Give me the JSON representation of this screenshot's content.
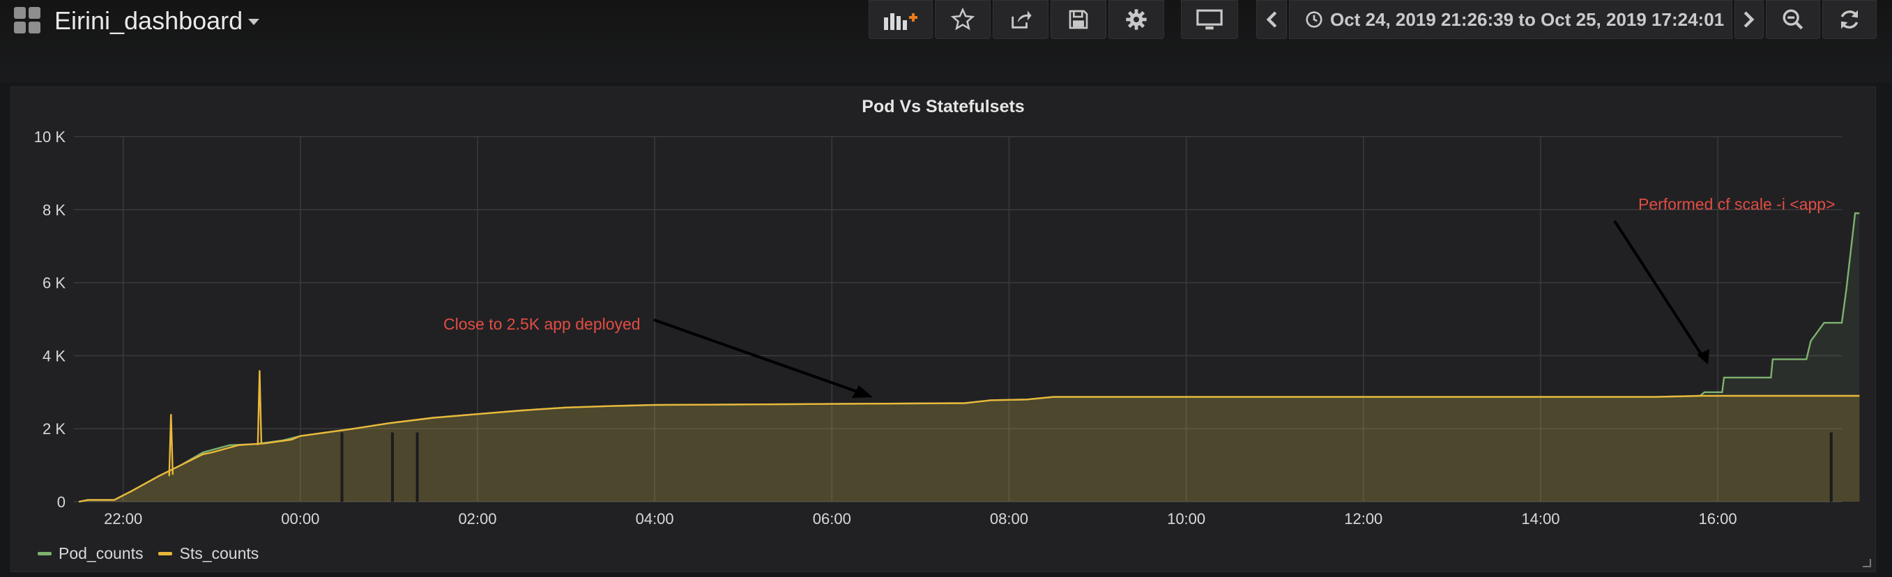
{
  "header": {
    "title": "Eirini_dashboard",
    "time_range": "Oct 24, 2019 21:26:39 to Oct 25, 2019 17:24:01"
  },
  "toolbar": {
    "icons": [
      "add-panel-icon",
      "star-icon",
      "share-icon",
      "save-icon",
      "gear-icon",
      "tv-mode-icon",
      "chevron-left-icon",
      "clock-icon",
      "chevron-right-icon",
      "zoom-out-icon",
      "refresh-icon"
    ]
  },
  "panel": {
    "title": "Pod Vs Statefulsets"
  },
  "chart_data": {
    "type": "line",
    "title": "Pod Vs Statefulsets",
    "x_axis": {
      "ticks": [
        "22:00",
        "00:00",
        "02:00",
        "04:00",
        "06:00",
        "08:00",
        "10:00",
        "12:00",
        "14:00",
        "16:00"
      ],
      "tick_hours": [
        22,
        24,
        26,
        28,
        30,
        32,
        34,
        36,
        38,
        40
      ],
      "range_hours": [
        21.444,
        41.4
      ]
    },
    "y_axis": {
      "ticks": [
        "0",
        "2 K",
        "4 K",
        "6 K",
        "8 K",
        "10 K"
      ],
      "tick_values": [
        0,
        2000,
        4000,
        6000,
        8000,
        10000
      ],
      "ylim": [
        0,
        10000
      ]
    },
    "grid": true,
    "legend": "bottom-left",
    "series": [
      {
        "name": "Pod_counts",
        "color": "#7eb26d",
        "points": [
          [
            21.5,
            0
          ],
          [
            21.6,
            50
          ],
          [
            21.9,
            50
          ],
          [
            22.1,
            300
          ],
          [
            22.4,
            700
          ],
          [
            22.65,
            1000
          ],
          [
            22.9,
            1350
          ],
          [
            23.2,
            1550
          ],
          [
            23.5,
            1580
          ],
          [
            23.8,
            1680
          ],
          [
            24.0,
            1800
          ],
          [
            24.3,
            1900
          ],
          [
            24.6,
            2000
          ],
          [
            25.0,
            2150
          ],
          [
            25.5,
            2300
          ],
          [
            26.0,
            2400
          ],
          [
            26.5,
            2500
          ],
          [
            27.0,
            2580
          ],
          [
            27.5,
            2620
          ],
          [
            28.0,
            2650
          ],
          [
            30.0,
            2680
          ],
          [
            31.5,
            2700
          ],
          [
            31.8,
            2780
          ],
          [
            32.2,
            2800
          ],
          [
            32.5,
            2870
          ],
          [
            38.0,
            2870
          ],
          [
            39.3,
            2870
          ],
          [
            39.8,
            2900
          ],
          [
            39.85,
            3000
          ],
          [
            40.05,
            3000
          ],
          [
            40.07,
            3400
          ],
          [
            40.6,
            3400
          ],
          [
            40.62,
            3900
          ],
          [
            41.0,
            3900
          ],
          [
            41.05,
            4400
          ],
          [
            41.2,
            4900
          ],
          [
            41.4,
            4900
          ],
          [
            41.45,
            5800
          ],
          [
            41.55,
            7900
          ],
          [
            41.6,
            7900
          ]
        ]
      },
      {
        "name": "Sts_counts",
        "color": "#eab839",
        "points": [
          [
            21.5,
            0
          ],
          [
            21.6,
            50
          ],
          [
            21.9,
            50
          ],
          [
            22.1,
            300
          ],
          [
            22.4,
            700
          ],
          [
            22.65,
            1000
          ],
          [
            22.9,
            1300
          ],
          [
            23.0,
            1350
          ],
          [
            23.3,
            1550
          ],
          [
            23.6,
            1600
          ],
          [
            23.9,
            1700
          ],
          [
            24.0,
            1800
          ],
          [
            24.3,
            1900
          ],
          [
            24.6,
            2000
          ],
          [
            25.0,
            2150
          ],
          [
            25.5,
            2300
          ],
          [
            26.0,
            2400
          ],
          [
            26.5,
            2500
          ],
          [
            27.0,
            2580
          ],
          [
            27.5,
            2620
          ],
          [
            28.0,
            2650
          ],
          [
            30.0,
            2680
          ],
          [
            31.5,
            2700
          ],
          [
            31.8,
            2780
          ],
          [
            32.2,
            2800
          ],
          [
            32.5,
            2870
          ],
          [
            38.0,
            2870
          ],
          [
            39.3,
            2870
          ],
          [
            39.8,
            2900
          ],
          [
            41.6,
            2900
          ]
        ],
        "spikes": [
          [
            22.54,
            2400
          ],
          [
            23.54,
            3600
          ]
        ]
      }
    ],
    "annotations": [
      {
        "text": "Close to 2.5K app deployed"
      },
      {
        "text": "Performed cf scale -i  <app>"
      }
    ]
  }
}
